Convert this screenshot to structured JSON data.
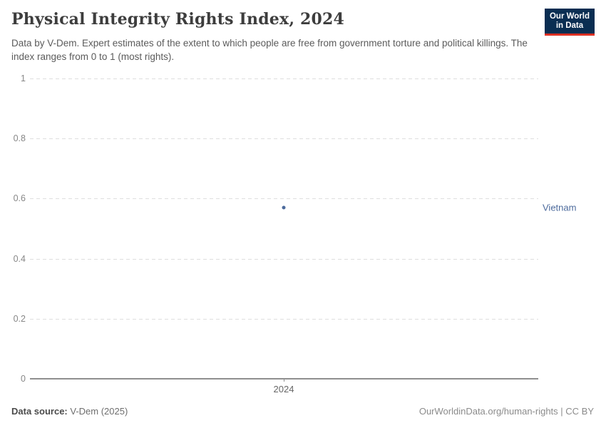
{
  "header": {
    "title": "Physical Integrity Rights Index, 2024",
    "subtitle": "Data by V-Dem. Expert estimates of the extent to which people are free from government torture and political killings. The index ranges from 0 to 1 (most rights).",
    "logo": {
      "line1": "Our World",
      "line2": "in Data"
    }
  },
  "chart_data": {
    "type": "scatter",
    "title": "Physical Integrity Rights Index, 2024",
    "series": [
      {
        "name": "Vietnam",
        "x": [
          2024
        ],
        "values": [
          0.57
        ],
        "color": "#4c6a9c"
      }
    ],
    "x_ticks": [
      "2024"
    ],
    "y_ticks": [
      "1",
      "0.8",
      "0.6",
      "0.4",
      "0.2",
      "0"
    ],
    "ylim": [
      0,
      1
    ],
    "grid": "horizontal-dashed",
    "legend_position": "right-of-point",
    "entity_label": "Vietnam"
  },
  "footer": {
    "source_label": "Data source:",
    "source_value": "V-Dem (2025)",
    "credit": "OurWorldinData.org/human-rights | CC BY"
  },
  "colors": {
    "accent_point": "#4c6a9c",
    "logo_bg": "#0a2e52",
    "logo_underline": "#dc3022",
    "gridline": "#dedede",
    "axis": "#8f8f8f",
    "title_text": "#3d3d3d",
    "subtitle_text": "#5b5b5b"
  }
}
